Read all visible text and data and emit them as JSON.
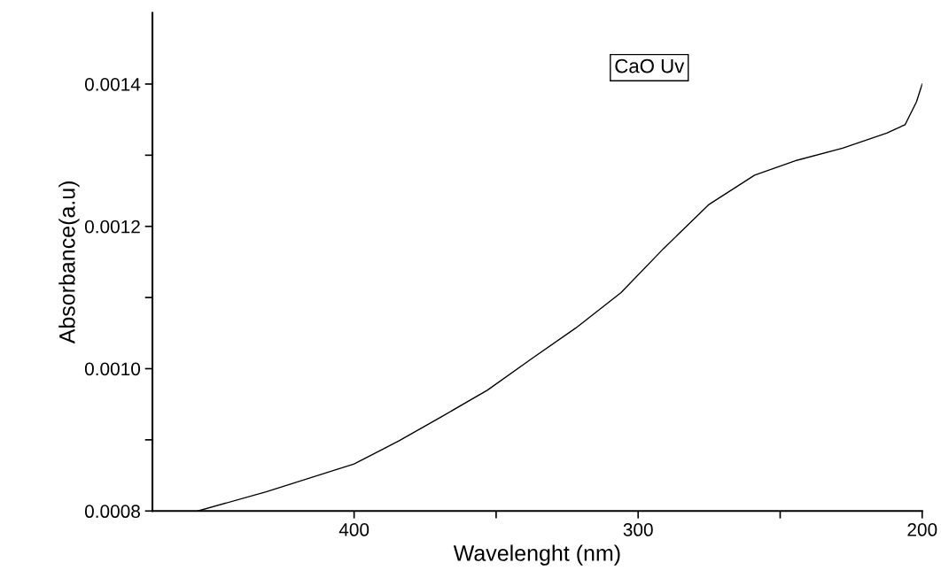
{
  "chart_data": {
    "type": "line",
    "xlabel": "Wavelenght (nm)",
    "ylabel": "Absorbance(a.u)",
    "annotations": [
      "CaO Uv"
    ],
    "xlim": [
      471,
      200
    ],
    "xticks": [
      400,
      {
        "value": 350,
        "label": null
      },
      300,
      {
        "value": 250,
        "label": null
      },
      200
    ],
    "ylim": [
      0.0008,
      0.0015
    ],
    "yticks": [
      {
        "value": 0.0008,
        "label": "0.0008"
      },
      {
        "value": 0.0009,
        "label": null
      },
      {
        "value": 0.001,
        "label": "0.0010"
      },
      {
        "value": 0.0011,
        "label": null
      },
      {
        "value": 0.0012,
        "label": "0.0012"
      },
      {
        "value": 0.0013,
        "label": null
      },
      {
        "value": 0.0014,
        "label": "0.0014"
      }
    ],
    "grid": false,
    "marker": "none",
    "line_style": "solid",
    "series": [
      {
        "color": "#000000",
        "x": [
          455,
          431,
          400,
          384,
          369,
          353,
          337.5,
          322,
          306,
          291,
          275,
          259,
          244,
          228,
          212.5,
          206,
          202,
          200
        ],
        "values": [
          0.0008,
          0.000827,
          0.000866,
          0.000899,
          0.000933,
          0.00097,
          0.001014,
          0.001057,
          0.001107,
          0.001169,
          0.001231,
          0.001272,
          0.001293,
          0.00131,
          0.001331,
          0.001343,
          0.001375,
          0.0014
        ]
      }
    ]
  }
}
